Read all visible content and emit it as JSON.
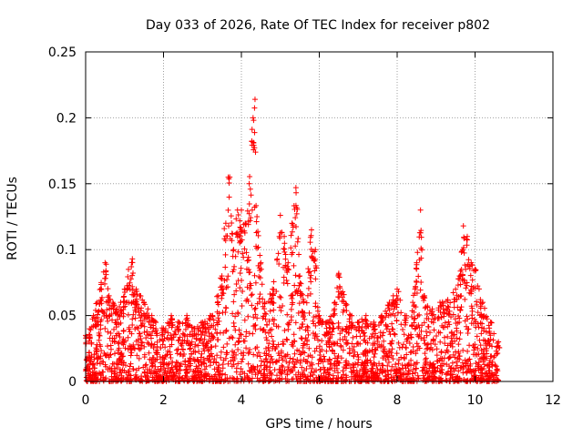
{
  "chart_data": {
    "type": "scatter",
    "title": "Day 033 of 2026, Rate Of TEC Index for receiver p802",
    "xlabel": "GPS time / hours",
    "ylabel": "ROTI / TECUs",
    "xlim": [
      0,
      12
    ],
    "ylim": [
      0,
      0.25
    ],
    "xticks": [
      0,
      2,
      4,
      6,
      8,
      10,
      12
    ],
    "xtick_labels": [
      "0",
      "2",
      "4",
      "6",
      "8",
      "10",
      "12"
    ],
    "yticks": [
      0,
      0.05,
      0.1,
      0.15,
      0.2,
      0.25
    ],
    "ytick_labels": [
      "0",
      "0.05",
      "0.1",
      "0.15",
      "0.2",
      "0.25"
    ],
    "grid": true,
    "marker": "plus",
    "color": "#ff0000",
    "series": [
      {
        "name": "ROTI",
        "envelope_note": "dense cloud of points; listed values are representative peak/upper-envelope samples read from the plot",
        "x": [
          0.0,
          0.1,
          0.2,
          0.3,
          0.4,
          0.5,
          0.6,
          0.7,
          0.8,
          0.9,
          1.0,
          1.1,
          1.2,
          1.3,
          1.4,
          1.5,
          1.6,
          1.7,
          1.8,
          2.0,
          2.2,
          2.4,
          2.6,
          2.8,
          3.0,
          3.2,
          3.4,
          3.5,
          3.6,
          3.7,
          3.8,
          3.9,
          4.0,
          4.1,
          4.2,
          4.3,
          4.35,
          4.4,
          4.5,
          4.6,
          4.8,
          5.0,
          5.1,
          5.2,
          5.3,
          5.4,
          5.5,
          5.6,
          5.8,
          5.9,
          6.0,
          6.2,
          6.4,
          6.5,
          6.6,
          6.8,
          7.0,
          7.2,
          7.4,
          7.6,
          7.8,
          7.9,
          8.0,
          8.2,
          8.4,
          8.5,
          8.6,
          8.7,
          8.9,
          9.1,
          9.3,
          9.5,
          9.6,
          9.7,
          9.8,
          9.9,
          10.0,
          10.2,
          10.4,
          10.6
        ],
        "y": [
          0.035,
          0.04,
          0.05,
          0.06,
          0.075,
          0.09,
          0.065,
          0.06,
          0.055,
          0.06,
          0.07,
          0.085,
          0.093,
          0.07,
          0.065,
          0.06,
          0.055,
          0.05,
          0.045,
          0.04,
          0.05,
          0.045,
          0.05,
          0.04,
          0.045,
          0.05,
          0.065,
          0.08,
          0.12,
          0.155,
          0.1,
          0.13,
          0.13,
          0.12,
          0.15,
          0.2,
          0.214,
          0.125,
          0.09,
          0.06,
          0.07,
          0.126,
          0.11,
          0.09,
          0.12,
          0.147,
          0.08,
          0.06,
          0.115,
          0.1,
          0.05,
          0.045,
          0.06,
          0.082,
          0.068,
          0.05,
          0.045,
          0.05,
          0.045,
          0.05,
          0.06,
          0.065,
          0.07,
          0.05,
          0.06,
          0.09,
          0.13,
          0.065,
          0.055,
          0.06,
          0.062,
          0.07,
          0.08,
          0.118,
          0.11,
          0.09,
          0.085,
          0.06,
          0.045,
          0.03
        ]
      }
    ]
  }
}
